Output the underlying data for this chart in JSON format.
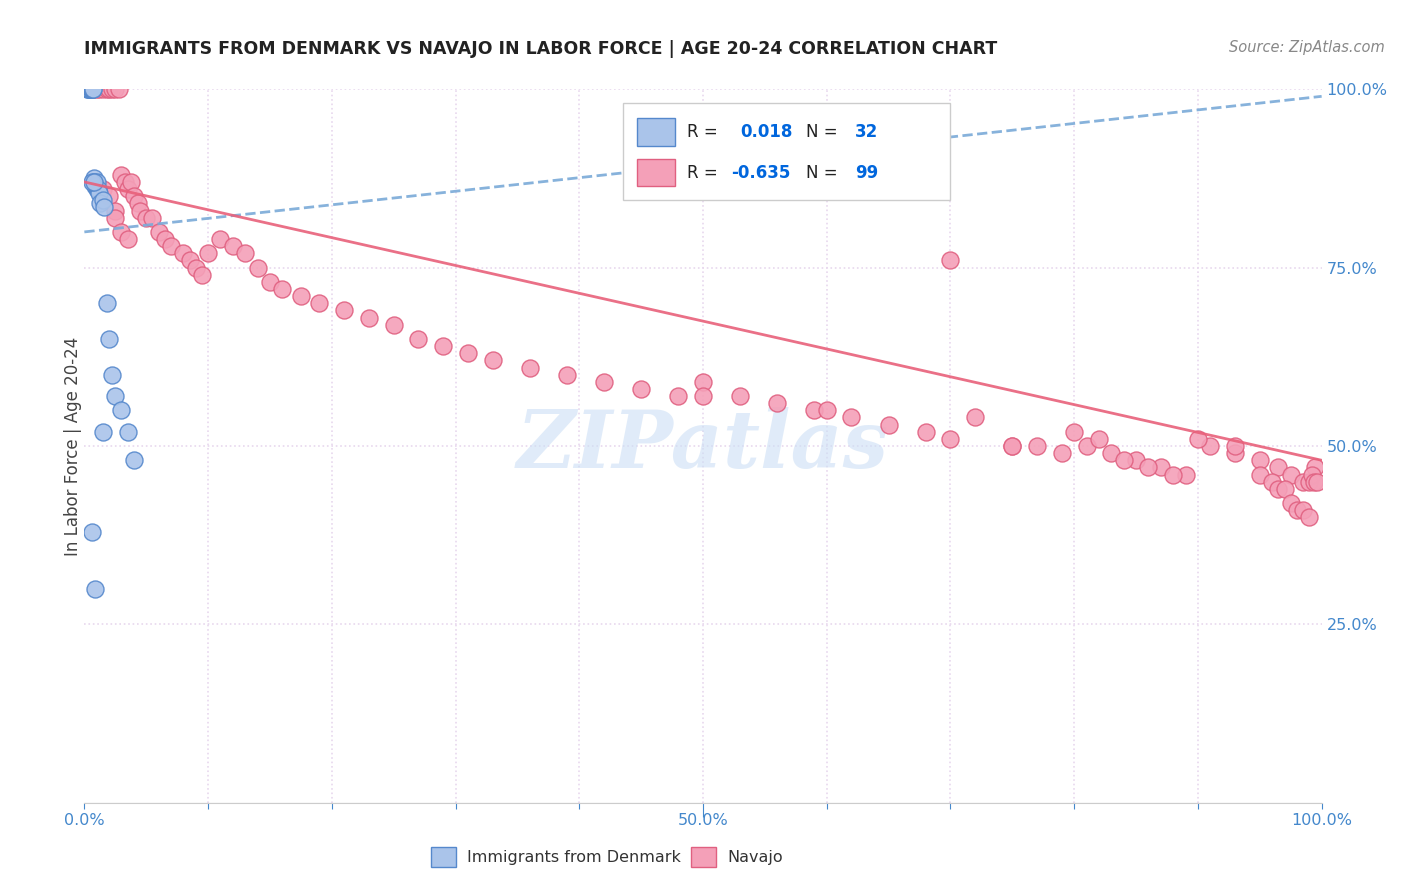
{
  "title": "IMMIGRANTS FROM DENMARK VS NAVAJO IN LABOR FORCE | AGE 20-24 CORRELATION CHART",
  "source": "Source: ZipAtlas.com",
  "ylabel": "In Labor Force | Age 20-24",
  "xlim": [
    0.0,
    1.0
  ],
  "ylim": [
    0.0,
    1.0
  ],
  "legend_r_denmark": "0.018",
  "legend_n_denmark": "32",
  "legend_r_navajo": "-0.635",
  "legend_n_navajo": "99",
  "denmark_fill": "#aac4ea",
  "denmark_edge": "#5588cc",
  "navajo_fill": "#f4a0b8",
  "navajo_edge": "#e06080",
  "denmark_line_color": "#7aaad8",
  "navajo_line_color": "#e8607a",
  "grid_color": "#e8d8ee",
  "tick_color": "#4488cc",
  "watermark_color": "#ccdff5",
  "dk_x": [
    0.002,
    0.003,
    0.004,
    0.004,
    0.005,
    0.005,
    0.006,
    0.006,
    0.007,
    0.007,
    0.008,
    0.008,
    0.009,
    0.01,
    0.01,
    0.011,
    0.012,
    0.013,
    0.015,
    0.016,
    0.018,
    0.02,
    0.022,
    0.025,
    0.03,
    0.035,
    0.04,
    0.006,
    0.009,
    0.015,
    0.006,
    0.008
  ],
  "dk_y": [
    1.0,
    1.0,
    1.0,
    1.0,
    1.0,
    1.0,
    1.0,
    1.0,
    1.0,
    1.0,
    0.875,
    0.87,
    0.865,
    0.86,
    0.87,
    0.86,
    0.855,
    0.84,
    0.845,
    0.835,
    0.7,
    0.65,
    0.6,
    0.57,
    0.55,
    0.52,
    0.48,
    0.38,
    0.3,
    0.52,
    0.87,
    0.87
  ],
  "nav_x": [
    0.008,
    0.01,
    0.012,
    0.015,
    0.018,
    0.02,
    0.022,
    0.025,
    0.028,
    0.03,
    0.033,
    0.035,
    0.038,
    0.04,
    0.043,
    0.045,
    0.05,
    0.055,
    0.06,
    0.065,
    0.07,
    0.08,
    0.085,
    0.09,
    0.095,
    0.1,
    0.11,
    0.12,
    0.13,
    0.14,
    0.15,
    0.16,
    0.175,
    0.19,
    0.21,
    0.23,
    0.25,
    0.27,
    0.29,
    0.31,
    0.33,
    0.36,
    0.39,
    0.42,
    0.45,
    0.48,
    0.5,
    0.53,
    0.56,
    0.59,
    0.62,
    0.65,
    0.68,
    0.7,
    0.72,
    0.75,
    0.77,
    0.79,
    0.81,
    0.83,
    0.85,
    0.87,
    0.89,
    0.91,
    0.93,
    0.95,
    0.965,
    0.975,
    0.985,
    0.99,
    0.995,
    0.015,
    0.02,
    0.025,
    0.025,
    0.03,
    0.035,
    0.5,
    0.6,
    0.7,
    0.75,
    0.8,
    0.82,
    0.84,
    0.86,
    0.88,
    0.9,
    0.93,
    0.95,
    0.96,
    0.965,
    0.97,
    0.975,
    0.98,
    0.985,
    0.99,
    0.992,
    0.994,
    0.996
  ],
  "nav_y": [
    1.0,
    1.0,
    1.0,
    1.0,
    1.0,
    1.0,
    1.0,
    1.0,
    1.0,
    0.88,
    0.87,
    0.86,
    0.87,
    0.85,
    0.84,
    0.83,
    0.82,
    0.82,
    0.8,
    0.79,
    0.78,
    0.77,
    0.76,
    0.75,
    0.74,
    0.77,
    0.79,
    0.78,
    0.77,
    0.75,
    0.73,
    0.72,
    0.71,
    0.7,
    0.69,
    0.68,
    0.67,
    0.65,
    0.64,
    0.63,
    0.62,
    0.61,
    0.6,
    0.59,
    0.58,
    0.57,
    0.59,
    0.57,
    0.56,
    0.55,
    0.54,
    0.53,
    0.52,
    0.51,
    0.54,
    0.5,
    0.5,
    0.49,
    0.5,
    0.49,
    0.48,
    0.47,
    0.46,
    0.5,
    0.49,
    0.48,
    0.47,
    0.46,
    0.45,
    0.45,
    0.47,
    0.86,
    0.85,
    0.83,
    0.82,
    0.8,
    0.79,
    0.57,
    0.55,
    0.76,
    0.5,
    0.52,
    0.51,
    0.48,
    0.47,
    0.46,
    0.51,
    0.5,
    0.46,
    0.45,
    0.44,
    0.44,
    0.42,
    0.41,
    0.41,
    0.4,
    0.46,
    0.45,
    0.45
  ],
  "dk_trend_x": [
    0.0,
    1.0
  ],
  "dk_trend_y": [
    0.8,
    0.99
  ],
  "nav_trend_x": [
    0.0,
    1.0
  ],
  "nav_trend_y": [
    0.87,
    0.48
  ]
}
